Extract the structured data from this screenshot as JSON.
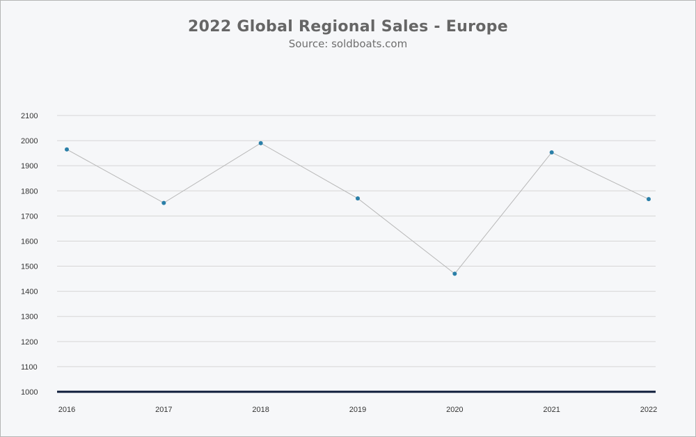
{
  "chart_data": {
    "type": "line",
    "title": "2022 Global Regional Sales - Europe",
    "subtitle": "Source: soldboats.com",
    "xlabel": "",
    "ylabel": "",
    "categories": [
      "2016",
      "2017",
      "2018",
      "2019",
      "2020",
      "2021",
      "2022"
    ],
    "series": [
      {
        "values": [
          1965,
          1752,
          1990,
          1770,
          1470,
          1953,
          1767
        ]
      }
    ],
    "ylim": [
      1000,
      2100
    ],
    "yticks": [
      1000,
      1100,
      1200,
      1300,
      1400,
      1500,
      1600,
      1700,
      1800,
      1900,
      2000,
      2100
    ],
    "grid": true,
    "legend": "none",
    "colors": {
      "line": "#b8b8b8",
      "marker": "#2a7fa8",
      "grid": "#d6d6d6",
      "baseline": "#0e1c3a",
      "background": "#f6f7f9"
    }
  }
}
